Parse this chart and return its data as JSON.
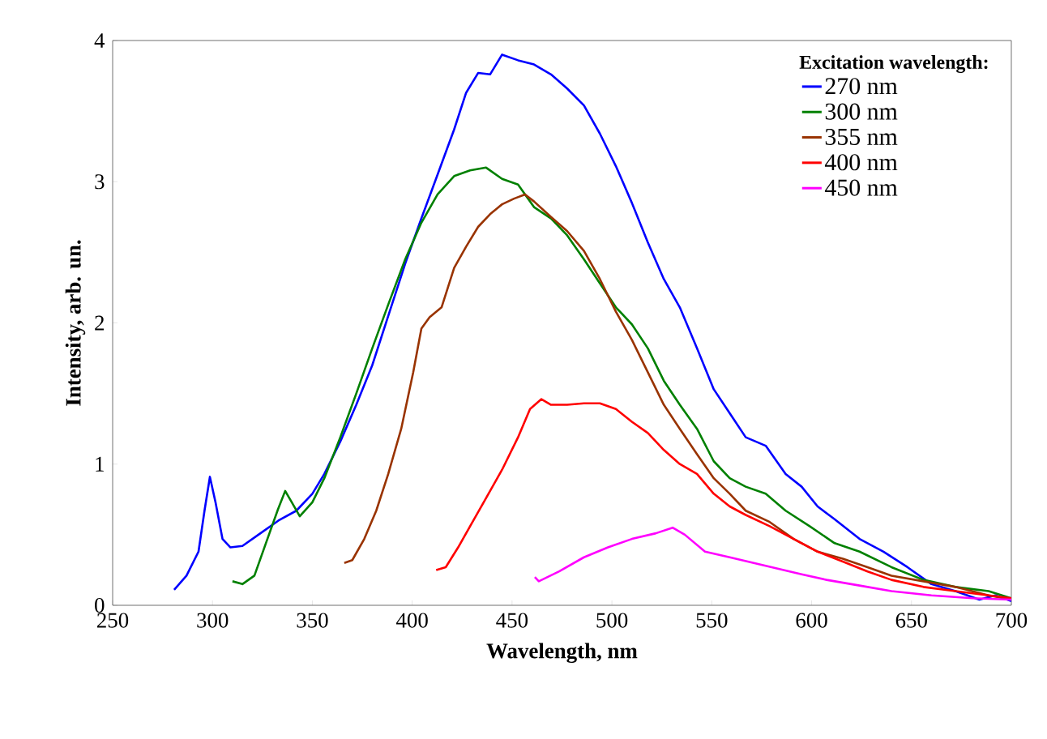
{
  "chart_data": {
    "type": "line",
    "xlabel": "Wavelength, nm",
    "ylabel": "Intensity, arb. un.",
    "legend_title": "Excitation wavelength:",
    "legend": "top right",
    "grid": false,
    "marker": "none",
    "line_style": "solid",
    "xlim": [
      250,
      700
    ],
    "xticks": [
      250,
      300,
      350,
      400,
      450,
      500,
      550,
      600,
      650,
      700
    ],
    "ylim": [
      0,
      4
    ],
    "yticks": [
      0,
      1,
      2,
      3,
      4
    ],
    "series": [
      {
        "name": "270 nm",
        "color": "#0000ff",
        "x": [
          280.8,
          287,
          293,
          296,
          298.7,
          301.5,
          305,
          309,
          315,
          323,
          333,
          342,
          350,
          356,
          364,
          372,
          380,
          388,
          396.5,
          404.6,
          412.7,
          421,
          427,
          433,
          439,
          445,
          453,
          461,
          469.5,
          477.6,
          486,
          494,
          502,
          510,
          518,
          526,
          534,
          542.6,
          551,
          559,
          567,
          577,
          587,
          595,
          603,
          611.5,
          624,
          636,
          648,
          660,
          672,
          684,
          692,
          700
        ],
        "values": [
          0.11,
          0.21,
          0.38,
          0.67,
          0.91,
          0.73,
          0.47,
          0.41,
          0.42,
          0.5,
          0.6,
          0.67,
          0.79,
          0.93,
          1.16,
          1.42,
          1.7,
          2.05,
          2.42,
          2.74,
          3.05,
          3.37,
          3.63,
          3.77,
          3.76,
          3.9,
          3.86,
          3.83,
          3.76,
          3.66,
          3.54,
          3.34,
          3.11,
          2.85,
          2.57,
          2.31,
          2.11,
          1.82,
          1.53,
          1.36,
          1.19,
          1.13,
          0.93,
          0.84,
          0.7,
          0.61,
          0.47,
          0.38,
          0.27,
          0.15,
          0.1,
          0.04,
          0.07,
          0.03
        ]
      },
      {
        "name": "300 nm",
        "color": "#008000",
        "x": [
          310,
          315,
          321,
          327.5,
          332.8,
          336.4,
          339.7,
          343.7,
          350,
          356,
          364,
          372,
          380,
          388,
          396.5,
          404.6,
          412.7,
          421,
          429,
          437,
          445,
          453,
          461,
          469.5,
          477.6,
          486,
          494,
          502,
          510,
          518,
          526,
          534,
          542.6,
          551,
          559,
          567,
          577,
          587,
          599,
          611.5,
          624,
          640,
          656,
          672,
          688.6,
          700
        ],
        "values": [
          0.17,
          0.15,
          0.21,
          0.47,
          0.68,
          0.81,
          0.73,
          0.63,
          0.73,
          0.9,
          1.19,
          1.5,
          1.82,
          2.13,
          2.45,
          2.71,
          2.91,
          3.04,
          3.08,
          3.1,
          3.02,
          2.98,
          2.82,
          2.74,
          2.62,
          2.45,
          2.28,
          2.11,
          1.99,
          1.82,
          1.59,
          1.42,
          1.25,
          1.02,
          0.9,
          0.84,
          0.79,
          0.67,
          0.56,
          0.44,
          0.38,
          0.27,
          0.18,
          0.13,
          0.1,
          0.05
        ]
      },
      {
        "name": "355 nm",
        "color": "#993300",
        "x": [
          366,
          370,
          376,
          382,
          388,
          394.5,
          400.5,
          404.6,
          408.7,
          414.7,
          421,
          427,
          433,
          439,
          445,
          451,
          456.5,
          461,
          469.5,
          477.6,
          486,
          494,
          502,
          510,
          518,
          526,
          534,
          542.6,
          551,
          559,
          567,
          579,
          591,
          603,
          615.6,
          628,
          640,
          656,
          672,
          688.6,
          700
        ],
        "values": [
          0.3,
          0.32,
          0.47,
          0.67,
          0.93,
          1.25,
          1.65,
          1.96,
          2.04,
          2.11,
          2.39,
          2.54,
          2.68,
          2.77,
          2.84,
          2.88,
          2.91,
          2.86,
          2.75,
          2.65,
          2.51,
          2.31,
          2.08,
          1.88,
          1.65,
          1.42,
          1.25,
          1.07,
          0.9,
          0.79,
          0.67,
          0.59,
          0.47,
          0.38,
          0.33,
          0.27,
          0.21,
          0.17,
          0.13,
          0.07,
          0.04
        ]
      },
      {
        "name": "400 nm",
        "color": "#ff0000",
        "x": [
          412,
          416.8,
          423,
          429,
          437,
          445,
          453,
          459,
          464.7,
          469.5,
          477.6,
          486,
          494,
          502,
          510,
          518,
          526,
          534,
          542.6,
          551,
          559,
          567,
          579,
          591,
          603,
          615.6,
          628,
          640,
          656,
          672,
          688.6,
          700
        ],
        "values": [
          0.25,
          0.27,
          0.41,
          0.56,
          0.76,
          0.96,
          1.19,
          1.39,
          1.46,
          1.42,
          1.42,
          1.43,
          1.43,
          1.39,
          1.3,
          1.22,
          1.1,
          1.0,
          0.93,
          0.79,
          0.7,
          0.64,
          0.56,
          0.47,
          0.38,
          0.31,
          0.24,
          0.18,
          0.13,
          0.1,
          0.07,
          0.05
        ]
      },
      {
        "name": "450 nm",
        "color": "#ff00ff",
        "x": [
          461.4,
          463.4,
          473.6,
          486,
          498,
          510,
          522,
          530.4,
          536.5,
          546.6,
          559,
          571,
          583,
          595,
          607.5,
          624,
          640,
          660,
          680.5,
          700
        ],
        "values": [
          0.2,
          0.17,
          0.24,
          0.34,
          0.41,
          0.47,
          0.51,
          0.55,
          0.5,
          0.38,
          0.34,
          0.3,
          0.26,
          0.22,
          0.18,
          0.14,
          0.1,
          0.07,
          0.05,
          0.04
        ]
      }
    ]
  }
}
